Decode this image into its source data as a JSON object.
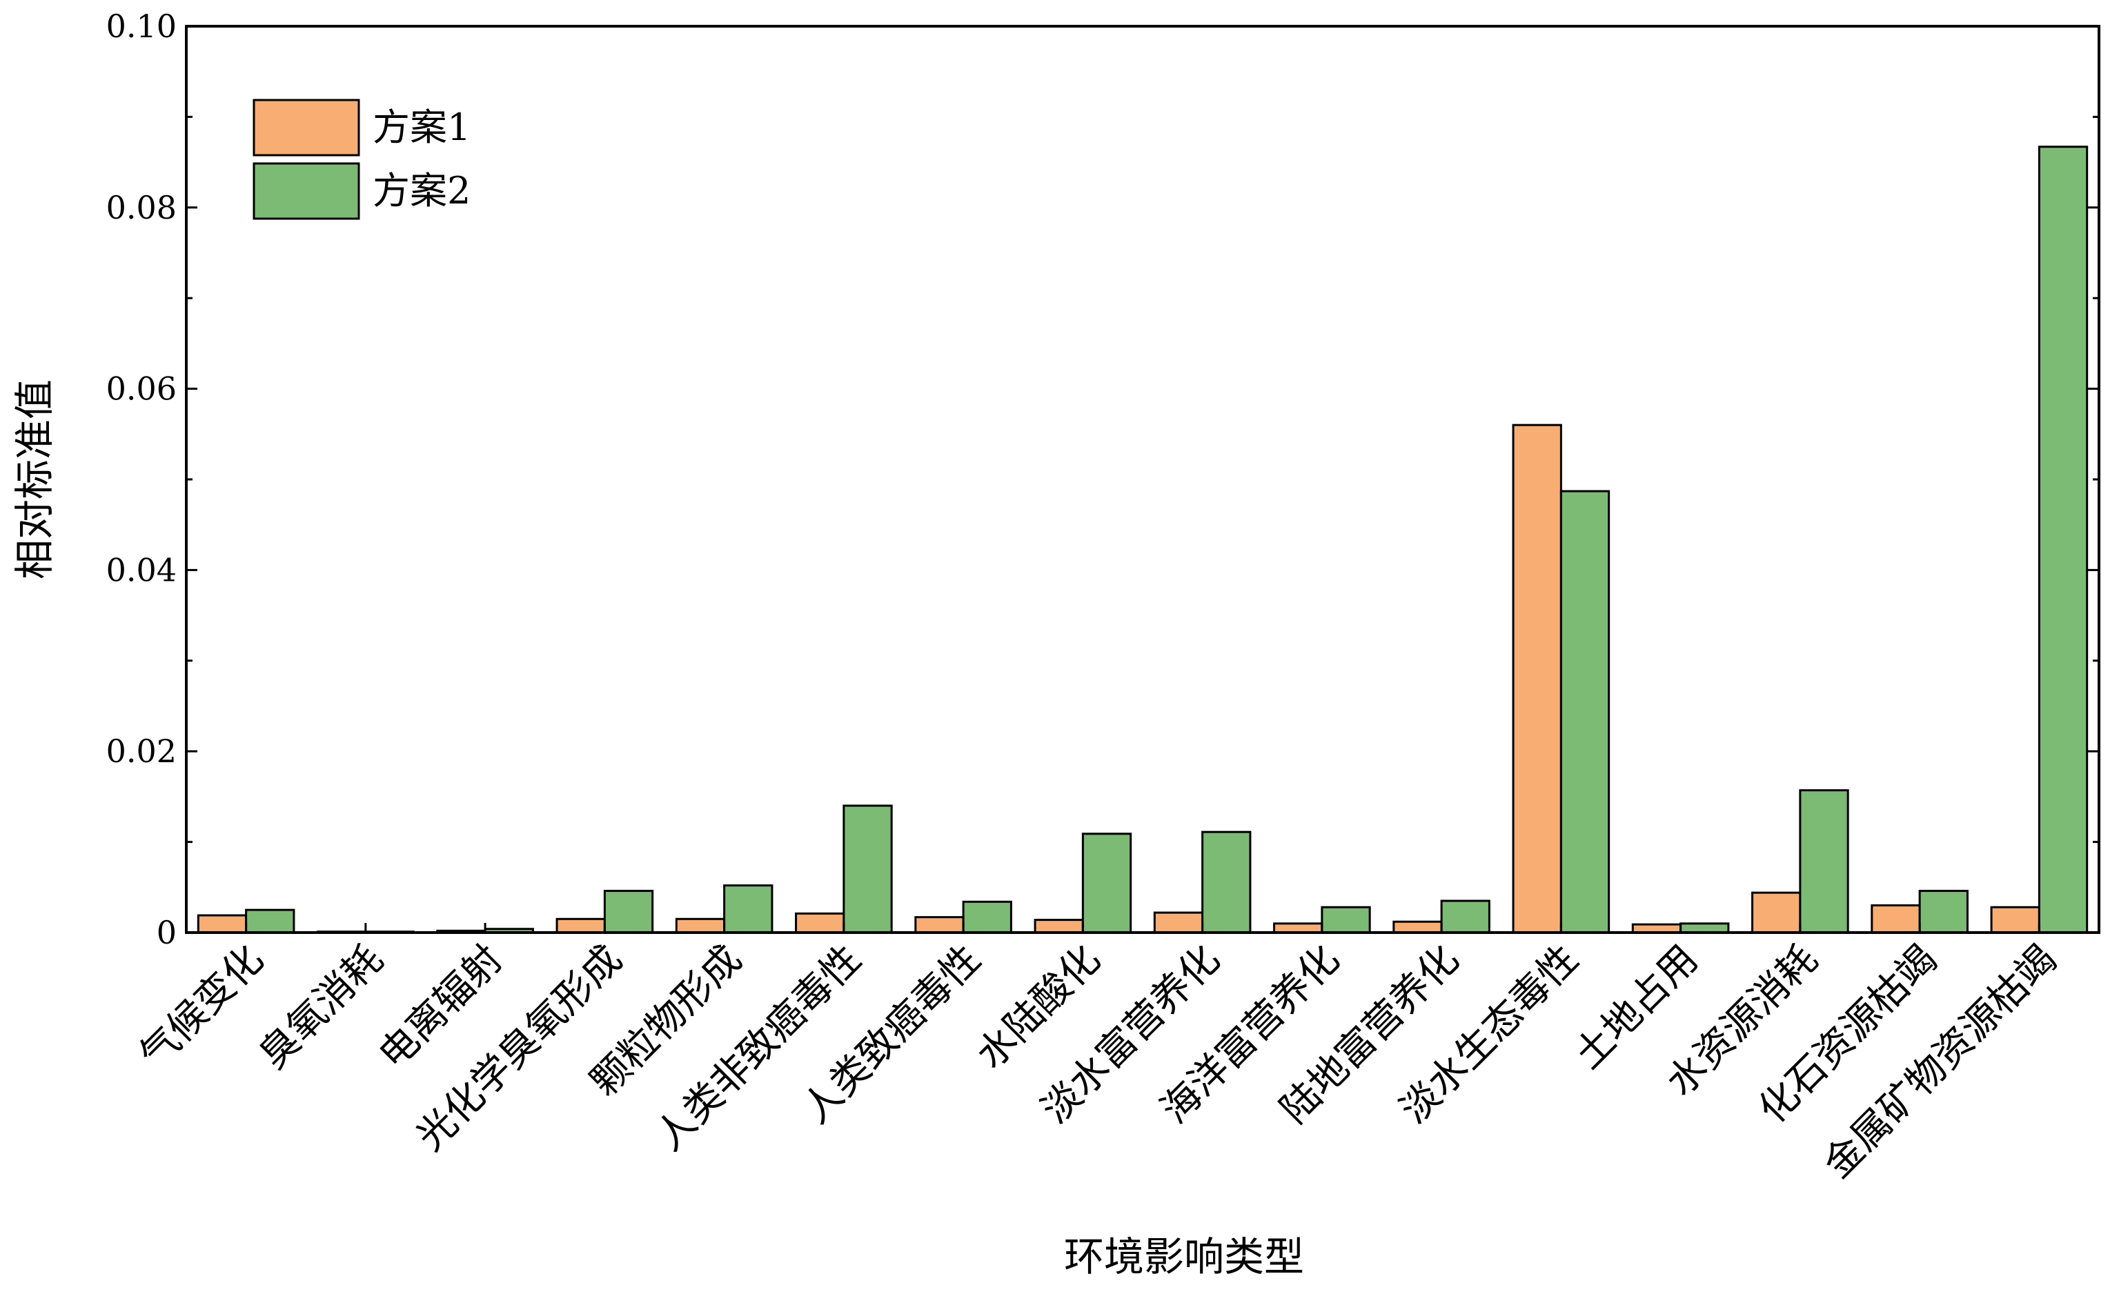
{
  "chart_data": {
    "type": "bar",
    "title": "",
    "xlabel": "环境影响类型",
    "ylabel": "相对标准值",
    "ylim": [
      0,
      0.1
    ],
    "yticks": [
      0,
      0.02,
      0.04,
      0.06,
      0.08,
      0.1
    ],
    "ytick_labels": [
      "0",
      "0.02",
      "0.04",
      "0.06",
      "0.08",
      "0.10"
    ],
    "grid": false,
    "legend_position": "top-left",
    "categories": [
      "气候变化",
      "臭氧消耗",
      "电离辐射",
      "光化学臭氧形成",
      "颗粒物形成",
      "人类非致癌毒性",
      "人类致癌毒性",
      "水陆酸化",
      "淡水富营养化",
      "海洋富营养化",
      "陆地富营养化",
      "淡水生态毒性",
      "土地占用",
      "水资源消耗",
      "化石资源枯竭",
      "金属矿物资源枯竭"
    ],
    "series": [
      {
        "name": "方案1",
        "color": "#f8ad72",
        "values": [
          0.0019,
          0.0001,
          0.0002,
          0.0015,
          0.0015,
          0.0021,
          0.0017,
          0.0014,
          0.0022,
          0.001,
          0.0012,
          0.056,
          0.0009,
          0.0044,
          0.003,
          0.0028
        ]
      },
      {
        "name": "方案2",
        "color": "#7bbb73",
        "values": [
          0.0025,
          0.0001,
          0.0004,
          0.0046,
          0.0052,
          0.014,
          0.0034,
          0.0109,
          0.0111,
          0.0028,
          0.0035,
          0.0487,
          0.001,
          0.0157,
          0.0046,
          0.0867
        ]
      }
    ]
  }
}
